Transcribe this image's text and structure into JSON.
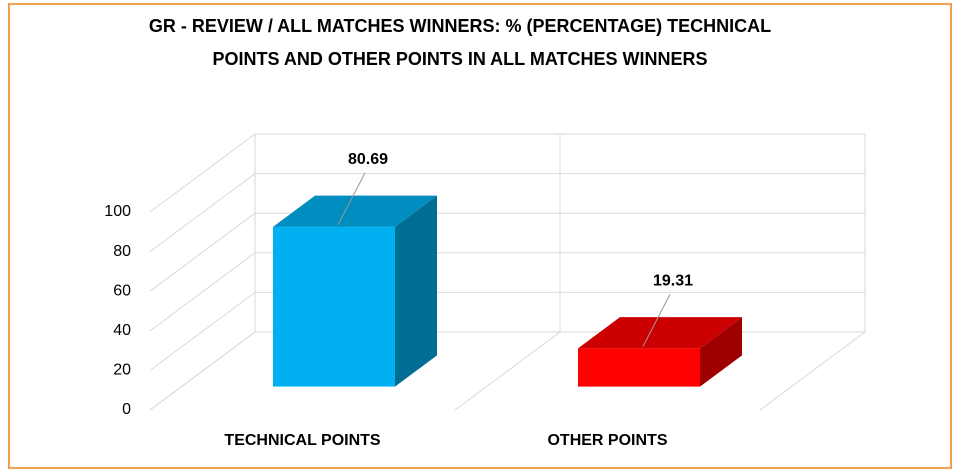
{
  "chart_data": {
    "type": "bar3d",
    "title": "GR - REVIEW / ALL MATCHES WINNERS: % (PERCENTAGE) TECHNICAL POINTS AND OTHER POINTS IN ALL MATCHES WINNERS",
    "categories": [
      "TECHNICAL POINTS",
      "OTHER POINTS"
    ],
    "values": [
      80.69,
      19.31
    ],
    "colors": [
      "#00b0f0",
      "#ff0000"
    ],
    "ylim": [
      0,
      100
    ],
    "yticks": [
      0,
      20,
      40,
      60,
      80,
      100
    ],
    "grid": true
  }
}
